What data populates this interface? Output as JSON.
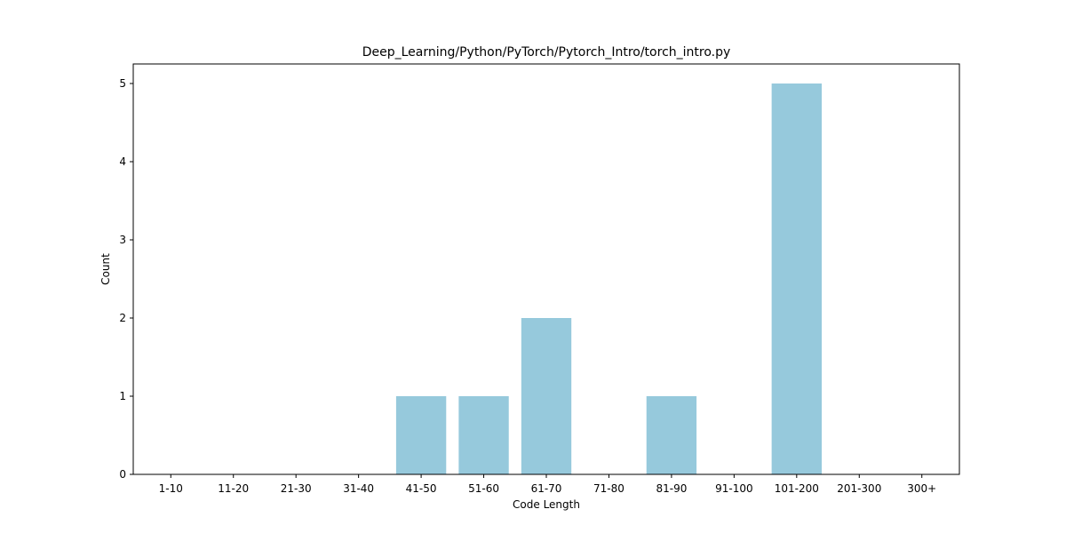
{
  "chart_data": {
    "type": "bar",
    "title": "Deep_Learning/Python/PyTorch/Pytorch_Intro/torch_intro.py",
    "xlabel": "Code Length",
    "ylabel": "Count",
    "categories": [
      "1-10",
      "11-20",
      "21-30",
      "31-40",
      "41-50",
      "51-60",
      "61-70",
      "71-80",
      "81-90",
      "91-100",
      "101-200",
      "201-300",
      "300+"
    ],
    "values": [
      0,
      0,
      0,
      0,
      1,
      1,
      2,
      0,
      1,
      0,
      5,
      0,
      0
    ],
    "ylim": [
      0,
      5.25
    ],
    "yticks": [
      0,
      1,
      2,
      3,
      4,
      5
    ],
    "bar_color": "#96c9dc",
    "grid": false,
    "legend": "none"
  }
}
